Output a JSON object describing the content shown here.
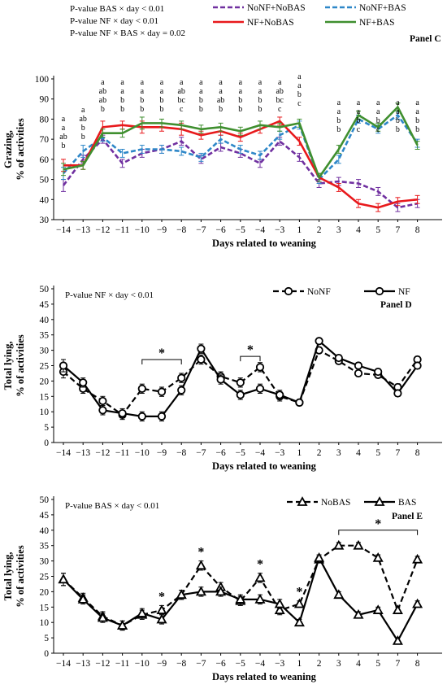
{
  "chart_data": [
    {
      "panel": "Panel C",
      "type": "line",
      "notes": [
        "P-value BAS × day < 0.01",
        "P-value NF × day < 0.01",
        "P-value NF × BAS × day = 0.02"
      ],
      "categories": [
        "−14",
        "−13",
        "−12",
        "−11",
        "−10",
        "−9",
        "−8",
        "−7",
        "−6",
        "−5",
        "−4",
        "−3",
        "1",
        "2",
        "3",
        "4",
        "5",
        "7",
        "8"
      ],
      "xlabel": "Days related to weaning",
      "ylabel": [
        "Grazing,",
        "% of activities"
      ],
      "ylim": [
        30,
        100
      ],
      "yticks": [
        30,
        40,
        50,
        60,
        70,
        80,
        90,
        100
      ],
      "legend_position": "top",
      "series": [
        {
          "name": "NoNF+NoBAS",
          "color": "#7030a0",
          "dash": "dash",
          "values": [
            47,
            60,
            70,
            58,
            63,
            65,
            69,
            60,
            66,
            63,
            58,
            69,
            61,
            48,
            49,
            48,
            44,
            36,
            38
          ],
          "err": [
            3,
            2,
            2,
            2,
            2,
            2,
            2,
            2,
            2,
            2,
            2,
            2,
            2,
            2,
            2,
            2,
            2,
            2,
            2
          ]
        },
        {
          "name": "NoNF+BAS",
          "color": "#2e87c8",
          "dash": "dash",
          "values": [
            53,
            64,
            71,
            63,
            65,
            65,
            64,
            61,
            70,
            65,
            62,
            72,
            77,
            50,
            60,
            80,
            75,
            82,
            68
          ],
          "err": [
            3,
            3,
            2,
            2,
            2,
            2,
            2,
            2,
            2,
            2,
            2,
            2,
            2,
            2,
            2,
            2,
            2,
            2,
            2
          ]
        },
        {
          "name": "NF+NoBAS",
          "color": "#e8191c",
          "dash": "solid",
          "values": [
            57,
            57,
            76,
            77,
            76,
            76,
            75,
            72,
            74,
            71,
            75,
            79,
            69,
            51,
            46,
            38,
            36,
            39,
            40
          ],
          "err": [
            3,
            2,
            3,
            2,
            3,
            2,
            3,
            2,
            2,
            2,
            2,
            2,
            2,
            2,
            2,
            2,
            2,
            2,
            2
          ]
        },
        {
          "name": "NF+BAS",
          "color": "#3f8f2f",
          "dash": "solid",
          "values": [
            55,
            57,
            73,
            73,
            78,
            78,
            77,
            75,
            76,
            74,
            77,
            76,
            78,
            51,
            65,
            82,
            76,
            86,
            67
          ],
          "err": [
            3,
            2,
            2,
            2,
            3,
            2,
            2,
            2,
            2,
            2,
            2,
            2,
            2,
            2,
            2,
            2,
            2,
            2,
            2
          ]
        }
      ],
      "letters": [
        [
          "a",
          "a",
          "ab",
          "b"
        ],
        [
          "a",
          "ab",
          "b",
          "b"
        ],
        [
          "a",
          "ab",
          "ab",
          "b"
        ],
        [
          "a",
          "a",
          "b",
          "b"
        ],
        [
          "a",
          "a",
          "b",
          "b"
        ],
        [
          "a",
          "a",
          "b",
          "b"
        ],
        [
          "a",
          "ab",
          "bc",
          "c"
        ],
        [
          "a",
          "a",
          "b",
          "b"
        ],
        [
          "a",
          "a",
          "ab",
          "b"
        ],
        [
          "a",
          "a",
          "b",
          "b"
        ],
        [
          "a",
          "a",
          "b",
          "b"
        ],
        [
          "a",
          "ab",
          "bc",
          "c"
        ],
        [
          "a",
          "a",
          "b",
          "c"
        ],
        [],
        [
          "a",
          "a",
          "b",
          "b"
        ],
        [
          "a",
          "a",
          "b",
          "c"
        ],
        [
          "a",
          "a",
          "b",
          "c"
        ],
        [
          "a",
          "a",
          "b",
          "b"
        ],
        [
          "a",
          "a",
          "b",
          "b"
        ]
      ]
    },
    {
      "panel": "Panel D",
      "type": "line",
      "notes": [
        "P-value NF × day < 0.01"
      ],
      "categories": [
        "−14",
        "−13",
        "−12",
        "−11",
        "−10",
        "−9",
        "−8",
        "−7",
        "−6",
        "−5",
        "−4",
        "−3",
        "1",
        "2",
        "3",
        "4",
        "5",
        "7",
        "8"
      ],
      "xlabel": "Days related to weaning",
      "ylabel": [
        "Total lying,",
        "% of activities"
      ],
      "ylim": [
        0,
        50
      ],
      "yticks": [
        0,
        5,
        10,
        15,
        20,
        25,
        30,
        35,
        40,
        45,
        50
      ],
      "legend_position": "top",
      "series": [
        {
          "name": "NoNF",
          "dash": "dash",
          "values": [
            23,
            17.5,
            13.5,
            9,
            17.5,
            16.5,
            21,
            27,
            21.5,
            19.5,
            24.5,
            15,
            13,
            30,
            26.5,
            22.5,
            22,
            18,
            27
          ],
          "err": [
            2,
            1.5,
            1.5,
            1.5,
            1.5,
            1.5,
            1.5,
            1.5,
            1.5,
            1.5,
            1.5,
            1.5,
            1,
            1,
            1,
            1,
            1,
            1,
            1
          ]
        },
        {
          "name": "NF",
          "dash": "solid",
          "values": [
            25,
            19.5,
            10.5,
            9.5,
            8.5,
            8.5,
            17,
            30.5,
            20.5,
            15.5,
            17.5,
            15.5,
            13,
            33,
            27.5,
            25,
            23,
            16,
            25
          ],
          "err": [
            2,
            1.5,
            1.5,
            1.5,
            1.5,
            1.5,
            1.5,
            1.5,
            1.5,
            1.5,
            1.5,
            1.5,
            1,
            1,
            1,
            1,
            1,
            1,
            1
          ]
        }
      ],
      "significance": [
        {
          "from": "−10",
          "to": "−8",
          "label": "*"
        },
        {
          "from": "−5",
          "to": "−4",
          "label": "*"
        }
      ]
    },
    {
      "panel": "Panel E",
      "type": "line",
      "notes": [
        "P-value BAS × day < 0.01"
      ],
      "categories": [
        "−14",
        "−13",
        "−12",
        "−11",
        "−10",
        "−9",
        "−8",
        "−7",
        "−6",
        "−5",
        "−4",
        "−3",
        "1",
        "2",
        "3",
        "4",
        "5",
        "7",
        "8"
      ],
      "xlabel": "Days related to weaning",
      "ylabel": [
        "Total lying,",
        "% of activities"
      ],
      "ylim": [
        0,
        50
      ],
      "yticks": [
        0,
        5,
        10,
        15,
        20,
        25,
        30,
        35,
        40,
        45,
        50
      ],
      "legend_position": "top",
      "series": [
        {
          "name": "NoBAS",
          "dash": "dash",
          "values": [
            24,
            18,
            12,
            9,
            12.5,
            14,
            19,
            28.5,
            21.5,
            17,
            24.5,
            14,
            16,
            30.5,
            35,
            35,
            31,
            14,
            30.5
          ],
          "err": [
            2,
            1.5,
            1.5,
            1.5,
            1.5,
            1.5,
            1.5,
            1.5,
            1.5,
            1.5,
            1.5,
            1.5,
            1,
            1,
            1,
            1,
            1,
            1,
            1
          ]
        },
        {
          "name": "BAS",
          "dash": "solid",
          "values": [
            24,
            17.5,
            11.5,
            9,
            13,
            11,
            19,
            20,
            20,
            17.5,
            17.5,
            16,
            10,
            31,
            19,
            12.5,
            14,
            4,
            16
          ],
          "err": [
            2,
            1.5,
            1.5,
            1.5,
            1.5,
            1.5,
            1.5,
            1.5,
            1.5,
            1.5,
            1.5,
            1.5,
            1,
            1,
            1,
            1,
            1,
            1,
            1
          ]
        }
      ],
      "significance": [
        {
          "at": "−9",
          "label": "*"
        },
        {
          "at": "−7",
          "label": "*"
        },
        {
          "at": "−4",
          "label": "*"
        },
        {
          "at": "1",
          "label": "*"
        },
        {
          "from": "3",
          "to": "8",
          "label": "*"
        }
      ]
    }
  ]
}
